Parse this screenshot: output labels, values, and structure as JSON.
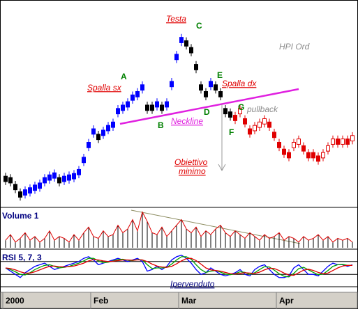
{
  "chart_data": [
    {
      "type": "candlestick",
      "ylim": [
        0,
        300
      ],
      "series": [
        {
          "up_color": "#0000ff",
          "down_color": "#000000",
          "ohlc": [
            [
              44,
              49,
              31,
              36
            ],
            [
              42,
              47,
              29,
              34
            ],
            [
              32,
              37,
              19,
              24
            ],
            [
              21,
              26,
              8,
              13
            ],
            [
              16,
              29,
              11,
              24
            ],
            [
              19,
              32,
              14,
              27
            ],
            [
              23,
              36,
              18,
              31
            ],
            [
              26,
              39,
              21,
              34
            ],
            [
              34,
              47,
              29,
              42
            ],
            [
              38,
              51,
              33,
              46
            ],
            [
              41,
              54,
              36,
              49
            ],
            [
              42,
              47,
              29,
              34
            ],
            [
              36,
              49,
              31,
              44
            ],
            [
              38,
              51,
              33,
              46
            ],
            [
              40,
              53,
              35,
              48
            ],
            [
              46,
              59,
              41,
              54
            ],
            [
              64,
              77,
              59,
              72
            ],
            [
              86,
              99,
              81,
              94
            ],
            [
              106,
              119,
              101,
              114
            ],
            [
              106,
              111,
              93,
              98
            ],
            [
              104,
              117,
              99,
              112
            ],
            [
              111,
              124,
              106,
              119
            ],
            [
              116,
              129,
              111,
              124
            ],
            [
              136,
              149,
              131,
              144
            ],
            [
              141,
              154,
              136,
              149
            ],
            [
              146,
              159,
              141,
              154
            ],
            [
              156,
              169,
              151,
              164
            ],
            [
              161,
              174,
              156,
              169
            ],
            [
              171,
              184,
              166,
              179
            ],
            [
              149,
              154,
              136,
              141
            ],
            [
              149,
              154,
              136,
              141
            ],
            [
              146,
              159,
              141,
              154
            ],
            [
              149,
              154,
              136,
              141
            ],
            [
              146,
              159,
              141,
              154
            ],
            [
              176,
              189,
              171,
              184
            ],
            [
              216,
              229,
              211,
              224
            ],
            [
              241,
              254,
              236,
              249
            ],
            [
              244,
              249,
              231,
              236
            ],
            [
              234,
              239,
              221,
              226
            ],
            [
              209,
              214,
              196,
              201
            ],
            [
              179,
              184,
              166,
              171
            ],
            [
              169,
              174,
              156,
              161
            ],
            [
              176,
              189,
              171,
              184
            ],
            [
              179,
              184,
              166,
              171
            ],
            [
              169,
              174,
              156,
              161
            ],
            [
              144,
              149,
              131,
              136
            ],
            [
              139,
              144,
              126,
              131
            ],
            null,
            null,
            null,
            null,
            null,
            null,
            null,
            null,
            null,
            null,
            null,
            null,
            null,
            null,
            null,
            null,
            null,
            null,
            null,
            null,
            null,
            null,
            null,
            null,
            null
          ]
        },
        {
          "up_color": "#ffffff",
          "down_color": "#e00000",
          "outline": "#e00000",
          "ohlc": [
            null,
            null,
            null,
            null,
            null,
            null,
            null,
            null,
            null,
            null,
            null,
            null,
            null,
            null,
            null,
            null,
            null,
            null,
            null,
            null,
            null,
            null,
            null,
            null,
            null,
            null,
            null,
            null,
            null,
            null,
            null,
            null,
            null,
            null,
            null,
            null,
            null,
            null,
            null,
            null,
            null,
            null,
            null,
            null,
            null,
            null,
            null,
            [
              134,
              139,
              121,
              126
            ],
            [
              136,
              149,
              131,
              144
            ],
            [
              129,
              134,
              116,
              121
            ],
            [
              114,
              119,
              101,
              106
            ],
            [
              111,
              124,
              106,
              119
            ],
            [
              116,
              129,
              111,
              124
            ],
            [
              121,
              134,
              116,
              129
            ],
            [
              124,
              129,
              111,
              116
            ],
            [
              109,
              114,
              96,
              101
            ],
            [
              94,
              99,
              81,
              86
            ],
            [
              84,
              89,
              71,
              76
            ],
            [
              79,
              84,
              66,
              71
            ],
            [
              86,
              99,
              81,
              94
            ],
            [
              91,
              104,
              86,
              99
            ],
            [
              89,
              94,
              76,
              81
            ],
            [
              79,
              84,
              66,
              71
            ],
            [
              79,
              84,
              66,
              71
            ],
            [
              74,
              79,
              61,
              66
            ],
            [
              71,
              84,
              66,
              79
            ],
            [
              81,
              94,
              76,
              89
            ],
            [
              91,
              104,
              86,
              99
            ],
            [
              99,
              104,
              86,
              91
            ],
            [
              91,
              104,
              86,
              99
            ],
            [
              99,
              104,
              86,
              91
            ],
            [
              96,
              109,
              91,
              104
            ]
          ]
        }
      ]
    },
    {
      "type": "bar",
      "title": "Volume 1",
      "ylim": [
        0,
        100
      ],
      "color": "#000000",
      "line_color": "#e00000",
      "values": [
        20,
        35,
        15,
        25,
        40,
        20,
        30,
        15,
        25,
        45,
        20,
        30,
        25,
        15,
        35,
        20,
        40,
        55,
        30,
        25,
        45,
        30,
        35,
        60,
        40,
        50,
        75,
        45,
        95,
        70,
        40,
        35,
        55,
        30,
        45,
        60,
        75,
        50,
        40,
        55,
        30,
        45,
        35,
        50,
        60,
        40,
        30,
        45,
        35,
        25,
        40,
        30,
        20,
        35,
        25,
        30,
        40,
        20,
        30,
        25,
        15,
        30,
        20,
        25,
        35,
        20,
        30,
        15,
        25,
        20,
        25,
        15
      ]
    },
    {
      "type": "line",
      "title": "RSI 5, 7, 3",
      "ylim": [
        0,
        100
      ],
      "yticks": [
        30,
        70
      ],
      "grid": true,
      "xticks": [
        {
          "value": 0,
          "label": "2000"
        },
        {
          "value": 18,
          "label": "Feb"
        },
        {
          "value": 36,
          "label": "Mar"
        },
        {
          "value": 56,
          "label": "Apr"
        }
      ],
      "series": [
        {
          "color": "#0000ff",
          "values": [
            50,
            40,
            30,
            20,
            35,
            45,
            55,
            60,
            65,
            55,
            45,
            50,
            55,
            60,
            65,
            70,
            80,
            85,
            75,
            60,
            65,
            70,
            75,
            80,
            75,
            70,
            75,
            80,
            70,
            40,
            45,
            55,
            45,
            55,
            75,
            85,
            90,
            80,
            65,
            45,
            30,
            35,
            50,
            40,
            30,
            25,
            30,
            35,
            45,
            30,
            25,
            45,
            55,
            60,
            45,
            30,
            20,
            20,
            25,
            50,
            60,
            45,
            30,
            30,
            25,
            40,
            55,
            65,
            60,
            60,
            55,
            60
          ]
        },
        {
          "color": "#00a000",
          "values": [
            50,
            45,
            38,
            30,
            28,
            35,
            45,
            52,
            58,
            60,
            55,
            50,
            52,
            55,
            60,
            65,
            72,
            80,
            80,
            72,
            66,
            68,
            72,
            76,
            77,
            74,
            73,
            76,
            75,
            60,
            48,
            50,
            50,
            52,
            62,
            75,
            85,
            85,
            77,
            60,
            45,
            36,
            40,
            42,
            37,
            31,
            29,
            32,
            38,
            36,
            30,
            35,
            45,
            54,
            53,
            43,
            32,
            24,
            22,
            33,
            48,
            52,
            44,
            36,
            29,
            31,
            42,
            55,
            60,
            61,
            58,
            58
          ]
        },
        {
          "color": "#e00000",
          "values": [
            50,
            48,
            44,
            38,
            34,
            34,
            38,
            44,
            50,
            55,
            56,
            54,
            53,
            54,
            56,
            60,
            65,
            72,
            76,
            75,
            72,
            70,
            71,
            73,
            75,
            75,
            74,
            75,
            75,
            70,
            62,
            56,
            53,
            52,
            55,
            63,
            72,
            79,
            80,
            73,
            62,
            50,
            44,
            42,
            40,
            36,
            32,
            31,
            33,
            35,
            34,
            33,
            37,
            44,
            49,
            48,
            42,
            34,
            28,
            27,
            35,
            43,
            46,
            42,
            36,
            32,
            34,
            42,
            50,
            56,
            58,
            58
          ]
        }
      ]
    }
  ],
  "annotations": [
    "Testa",
    "C",
    "HPI Ord",
    "A",
    "Spalla sx",
    "E",
    "Spalla dx",
    "D",
    "G",
    "pullback",
    "F",
    "B",
    "Neckline",
    "Obiettivo",
    "minimo",
    "Ipervenduto"
  ]
}
